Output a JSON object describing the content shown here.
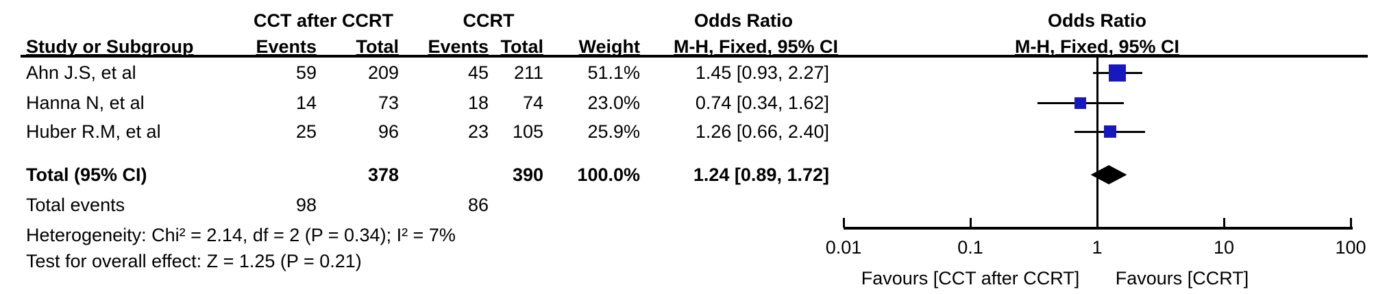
{
  "title_headers": {
    "group1": "CCT after CCRT",
    "group2": "CCRT",
    "or_text_col": "Odds Ratio",
    "or_plot_col": "Odds Ratio",
    "method_text_col": "M-H, Fixed, 95% CI",
    "method_plot_col": "M-H, Fixed, 95% CI"
  },
  "column_headers": {
    "study": "Study or Subgroup",
    "events1": "Events",
    "total1": "Total",
    "events2": "Events",
    "total2": "Total",
    "weight": "Weight"
  },
  "total_row": {
    "label": "Total (95% CI)",
    "total1": "378",
    "total2": "390",
    "weight": "100.0%",
    "or_ci": "1.24 [0.89, 1.72]"
  },
  "total_events_row": {
    "label": "Total events",
    "events1": "98",
    "events2": "86"
  },
  "footnotes": {
    "heterogeneity": "Heterogeneity: Chi² = 2.14, df = 2 (P = 0.34); I² = 7%",
    "overall_effect": "Test for overall effect: Z = 1.25 (P = 0.21)"
  },
  "axis": {
    "tick_labels": [
      "0.01",
      "0.1",
      "1",
      "10",
      "100"
    ],
    "favours_left": "Favours [CCT after CCRT]",
    "favours_right": "Favours [CCRT]"
  },
  "colors": {
    "marker_blue": "#1818C0",
    "diamond_black": "#000000",
    "line_black": "#000000"
  },
  "chart_data": {
    "type": "forest_plot",
    "effect_measure": "Odds Ratio, M-H, Fixed, 95% CI",
    "x_scale": "log10",
    "x_range": [
      0.01,
      100
    ],
    "x_ticks": [
      0.01,
      0.1,
      1,
      10,
      100
    ],
    "reference_line": 1,
    "studies": [
      {
        "name": "Ahn J.S, et al",
        "events1": "59",
        "total1": "209",
        "events2": "45",
        "total2": "211",
        "weight": "51.1%",
        "weight_pct": 51.1,
        "or": 1.45,
        "ci_low": 0.93,
        "ci_high": 2.27,
        "or_ci": "1.45 [0.93, 2.27]"
      },
      {
        "name": "Hanna N, et al",
        "events1": "14",
        "total1": "73",
        "events2": "18",
        "total2": "74",
        "weight": "23.0%",
        "weight_pct": 23.0,
        "or": 0.74,
        "ci_low": 0.34,
        "ci_high": 1.62,
        "or_ci": "0.74 [0.34, 1.62]"
      },
      {
        "name": "Huber R.M, et al",
        "events1": "25",
        "total1": "96",
        "events2": "23",
        "total2": "105",
        "weight": "25.9%",
        "weight_pct": 25.9,
        "or": 1.26,
        "ci_low": 0.66,
        "ci_high": 2.4,
        "or_ci": "1.26 [0.66, 2.40]"
      }
    ],
    "pooled": {
      "label": "Total (95% CI)",
      "or": 1.24,
      "ci_low": 0.89,
      "ci_high": 1.72,
      "weight_pct": 100.0
    },
    "totals": {
      "group1_total": 378,
      "group2_total": 390,
      "group1_events": 98,
      "group2_events": 86
    },
    "heterogeneity": {
      "chi2": 2.14,
      "df": 2,
      "p": 0.34,
      "i2_pct": 7
    },
    "overall_effect": {
      "z": 1.25,
      "p": 0.21
    },
    "favours_left": "Favours [CCT after CCRT]",
    "favours_right": "Favours [CCRT]"
  }
}
